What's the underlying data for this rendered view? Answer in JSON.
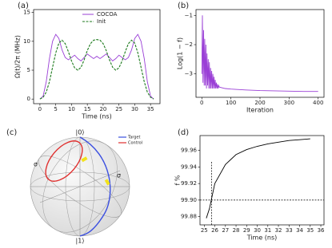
{
  "chart_data": [
    {
      "type": "line",
      "label": "(a)",
      "xlabel": "Time (ns)",
      "ylabel": "Ω(t)/2π (MHz)",
      "x": [
        0,
        1,
        2,
        3,
        4,
        5,
        6,
        7,
        8,
        9,
        10,
        11,
        12,
        13,
        14,
        15,
        16,
        17,
        18,
        19,
        20,
        21,
        22,
        23,
        24,
        25,
        26,
        27,
        28,
        29,
        30,
        31,
        32,
        33,
        34,
        35,
        36
      ],
      "series": [
        {
          "name": "COCOA",
          "color": "#9a3fd6",
          "dash": false,
          "values": [
            0,
            0.5,
            3,
            7,
            10,
            11.2,
            10.5,
            8.5,
            7.2,
            6.8,
            7.2,
            7.6,
            7.0,
            6.6,
            7.2,
            7.8,
            7.4,
            7.0,
            7.4,
            7.0,
            7.4,
            7.8,
            7.2,
            6.6,
            7.0,
            7.6,
            7.2,
            6.8,
            7.2,
            8.5,
            10.5,
            11.2,
            10,
            7,
            3,
            0.5,
            0
          ]
        },
        {
          "name": "Init",
          "color": "#1c7a1c",
          "dash": true,
          "values": [
            0,
            0.3,
            1.2,
            3,
            5.5,
            8,
            9.7,
            10.2,
            9.6,
            8.2,
            6.6,
            5.4,
            5.0,
            5.5,
            6.8,
            8.4,
            9.6,
            10.2,
            10.3,
            10.2,
            9.6,
            8.4,
            6.8,
            5.5,
            5.0,
            5.4,
            6.6,
            8.2,
            9.6,
            10.2,
            9.7,
            8,
            5.5,
            3,
            1.2,
            0.3,
            0
          ]
        }
      ],
      "xlim": [
        -2,
        38
      ],
      "xticks": [
        0,
        5,
        10,
        15,
        20,
        25,
        30,
        35
      ],
      "ylim": [
        -0.8,
        15.5
      ],
      "yticks": [
        0,
        5,
        10,
        15
      ],
      "legend": "upper center"
    },
    {
      "type": "line",
      "label": "(b)",
      "xlabel": "Iteration",
      "ylabel": "Log(1 − f)",
      "x": [
        0,
        2,
        4,
        6,
        8,
        10,
        12,
        14,
        16,
        18,
        20,
        22,
        24,
        26,
        28,
        30,
        32,
        34,
        36,
        38,
        40,
        42,
        44,
        46,
        48,
        50,
        52,
        54,
        56,
        58,
        60,
        80,
        100,
        150,
        200,
        250,
        300,
        350,
        400
      ],
      "series": [
        {
          "color": "#9a3fd6",
          "dash": false,
          "values": [
            -3.0,
            -1.0,
            -3.3,
            -1.5,
            -3.4,
            -1.8,
            -3.4,
            -2.0,
            -3.5,
            -2.3,
            -3.4,
            -2.5,
            -3.5,
            -2.6,
            -3.5,
            -2.8,
            -3.5,
            -2.9,
            -3.5,
            -3.0,
            -3.5,
            -3.1,
            -3.5,
            -3.2,
            -3.5,
            -3.3,
            -3.5,
            -3.35,
            -3.5,
            -3.4,
            -3.45,
            -3.5,
            -3.52,
            -3.55,
            -3.57,
            -3.58,
            -3.59,
            -3.6,
            -3.6
          ]
        }
      ],
      "xlim": [
        -20,
        420
      ],
      "xticks": [
        0,
        100,
        200,
        300,
        400
      ],
      "ylim": [
        -3.8,
        -0.8
      ],
      "yticks": [
        {
          "value": -1,
          "label": "−1"
        },
        {
          "value": -2,
          "label": "−2"
        },
        {
          "value": -3,
          "label": "−3"
        }
      ]
    },
    {
      "type": "bloch",
      "label": "(c)",
      "labels": {
        "top": "|0⟩",
        "bottom": "|1⟩",
        "left": "σ",
        "right": "σ"
      },
      "series": [
        {
          "name": "Target",
          "color": "#3b4fe0"
        },
        {
          "name": "Control",
          "color": "#e0302f"
        }
      ]
    },
    {
      "type": "line",
      "label": "(d)",
      "xlabel": "Time (ns)",
      "ylabel": "f %",
      "x": [
        25.2,
        25.5,
        26,
        27,
        28,
        29,
        30,
        31,
        32,
        33,
        34,
        35
      ],
      "series": [
        {
          "color": "#000",
          "dash": false,
          "values": [
            99.878,
            99.89,
            99.92,
            99.943,
            99.955,
            99.961,
            99.965,
            99.968,
            99.97,
            99.972,
            99.973,
            99.974
          ]
        }
      ],
      "hline": 99.9,
      "vline": 25.7,
      "xlim": [
        24.6,
        36.3
      ],
      "xticks": [
        25,
        26,
        27,
        28,
        29,
        30,
        31,
        32,
        33,
        34,
        35,
        36
      ],
      "ylim": [
        99.87,
        99.978
      ],
      "yticks": [
        {
          "value": 99.88,
          "label": "99.88"
        },
        {
          "value": 99.9,
          "label": "99.90"
        },
        {
          "value": 99.92,
          "label": "99.92"
        },
        {
          "value": 99.94,
          "label": "99.94"
        },
        {
          "value": 99.96,
          "label": "99.96"
        }
      ]
    }
  ]
}
